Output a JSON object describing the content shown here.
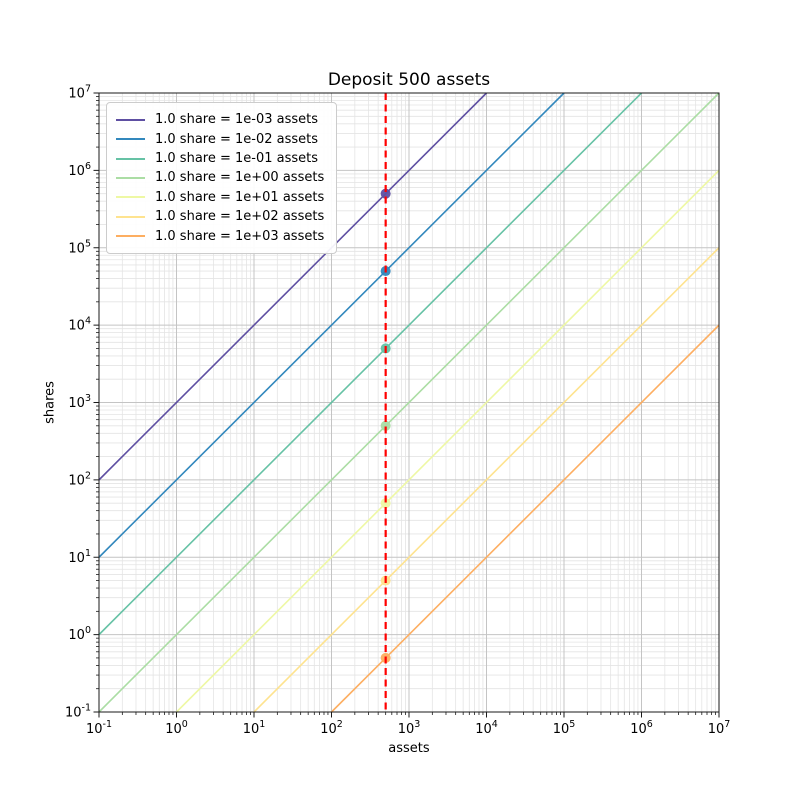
{
  "chart_data": {
    "type": "line",
    "title": "Deposit 500 assets",
    "xlabel": "assets",
    "ylabel": "shares",
    "xscale": "log",
    "yscale": "log",
    "xlim": [
      0.1,
      10000000
    ],
    "ylim": [
      0.1,
      10000000
    ],
    "x_tick_exponents": [
      -1,
      0,
      1,
      2,
      3,
      4,
      5,
      6,
      7
    ],
    "y_tick_exponents": [
      -1,
      0,
      1,
      2,
      3,
      4,
      5,
      6,
      7
    ],
    "grid": {
      "major": true,
      "minor": true,
      "major_color": "#c4c4c4",
      "minor_color": "#e4e4e4"
    },
    "legend": {
      "position": "upper left"
    },
    "deposit_assets": 500,
    "series": [
      {
        "name": "1.0 share = 1e-03 assets",
        "color": "#5e4fa2",
        "rate": 0.001,
        "line": {
          "x": [
            0.1,
            10000
          ],
          "y": [
            100,
            10000000
          ]
        },
        "point": {
          "x": 500,
          "y": 500000
        }
      },
      {
        "name": "1.0 share = 1e-02 assets",
        "color": "#3288bd",
        "rate": 0.01,
        "line": {
          "x": [
            0.1,
            100000
          ],
          "y": [
            10,
            10000000
          ]
        },
        "point": {
          "x": 500,
          "y": 50000
        }
      },
      {
        "name": "1.0 share = 1e-01 assets",
        "color": "#66c2a5",
        "rate": 0.1,
        "line": {
          "x": [
            0.1,
            1000000
          ],
          "y": [
            1,
            10000000
          ]
        },
        "point": {
          "x": 500,
          "y": 5000
        }
      },
      {
        "name": "1.0 share = 1e+00 assets",
        "color": "#abdda4",
        "rate": 1,
        "line": {
          "x": [
            0.1,
            10000000
          ],
          "y": [
            0.1,
            10000000
          ]
        },
        "point": {
          "x": 500,
          "y": 500
        }
      },
      {
        "name": "1.0 share = 1e+01 assets",
        "color": "#eef8a4",
        "rate": 10,
        "line": {
          "x": [
            1,
            10000000
          ],
          "y": [
            0.1,
            1000000
          ]
        },
        "point": {
          "x": 500,
          "y": 50
        }
      },
      {
        "name": "1.0 share = 1e+02 assets",
        "color": "#fee38f",
        "rate": 100,
        "line": {
          "x": [
            10,
            10000000
          ],
          "y": [
            0.1,
            100000
          ]
        },
        "point": {
          "x": 500,
          "y": 5
        }
      },
      {
        "name": "1.0 share = 1e+03 assets",
        "color": "#fdae61",
        "rate": 1000,
        "line": {
          "x": [
            100,
            10000000
          ],
          "y": [
            0.1,
            10000
          ]
        },
        "point": {
          "x": 500,
          "y": 0.5
        }
      }
    ],
    "vline": {
      "x": 500,
      "color": "#ff0000",
      "style": "dashed"
    }
  }
}
